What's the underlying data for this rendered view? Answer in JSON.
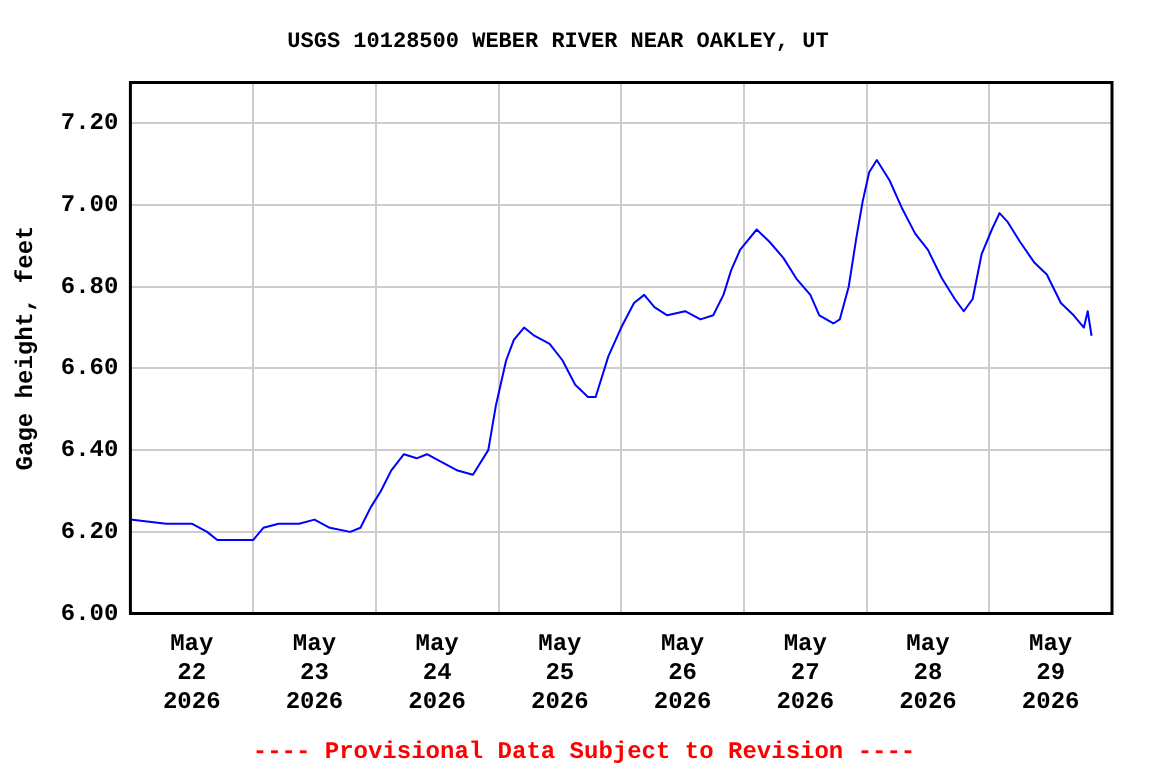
{
  "chart_data": {
    "type": "line",
    "title": "USGS 10128500 WEBER RIVER NEAR OAKLEY, UT",
    "ylabel": "Gage height, feet",
    "annotations": [
      "---- Provisional Data Subject to Revision ----"
    ],
    "xlim": [
      "2026-05-22",
      "2026-05-30"
    ],
    "xticks": [
      {
        "value": "2026-05-22T12:00",
        "label": "May 22 2026"
      },
      {
        "value": "2026-05-23",
        "label": null
      },
      {
        "value": "2026-05-23T12:00",
        "label": "May 23 2026"
      },
      {
        "value": "2026-05-24",
        "label": null
      },
      {
        "value": "2026-05-24T12:00",
        "label": "May 24 2026"
      },
      {
        "value": "2026-05-25",
        "label": null
      },
      {
        "value": "2026-05-25T12:00",
        "label": "May 25 2026"
      },
      {
        "value": "2026-05-26",
        "label": null
      },
      {
        "value": "2026-05-26T12:00",
        "label": "May 26 2026"
      },
      {
        "value": "2026-05-27",
        "label": null
      },
      {
        "value": "2026-05-27T12:00",
        "label": "May 27 2026"
      },
      {
        "value": "2026-05-28",
        "label": null
      },
      {
        "value": "2026-05-28T12:00",
        "label": "May 28 2026"
      },
      {
        "value": "2026-05-29",
        "label": null
      },
      {
        "value": "2026-05-29T12:00",
        "label": "May 29 2026"
      }
    ],
    "ylim": [
      6.0,
      7.3
    ],
    "yticks": [
      {
        "value": 6.0,
        "label": "6.00"
      },
      {
        "value": 6.2,
        "label": "6.20"
      },
      {
        "value": 6.4,
        "label": "6.40"
      },
      {
        "value": 6.6,
        "label": "6.60"
      },
      {
        "value": 6.8,
        "label": "6.80"
      },
      {
        "value": 7.0,
        "label": "7.00"
      },
      {
        "value": 7.2,
        "label": "7.20"
      }
    ],
    "grid": true,
    "legend": false,
    "marker": "none",
    "line_style": "solid",
    "x": [
      "2026-05-22T00:00",
      "2026-05-22T07:00",
      "2026-05-22T12:00",
      "2026-05-22T15:00",
      "2026-05-22T17:00",
      "2026-05-22T21:00",
      "2026-05-23T00:00",
      "2026-05-23T02:00",
      "2026-05-23T05:00",
      "2026-05-23T09:00",
      "2026-05-23T12:00",
      "2026-05-23T15:00",
      "2026-05-23T19:00",
      "2026-05-23T21:00",
      "2026-05-23T23:00",
      "2026-05-24T01:00",
      "2026-05-24T03:00",
      "2026-05-24T05:30",
      "2026-05-24T08:00",
      "2026-05-24T10:00",
      "2026-05-24T13:00",
      "2026-05-24T16:00",
      "2026-05-24T19:00",
      "2026-05-24T20:00",
      "2026-05-24T22:00",
      "2026-05-24T23:30",
      "2026-05-25T01:30",
      "2026-05-25T03:00",
      "2026-05-25T05:00",
      "2026-05-25T07:00",
      "2026-05-25T10:00",
      "2026-05-25T12:30",
      "2026-05-25T15:00",
      "2026-05-25T17:30",
      "2026-05-25T19:00",
      "2026-05-25T21:30",
      "2026-05-26T00:00",
      "2026-05-26T02:30",
      "2026-05-26T04:30",
      "2026-05-26T06:30",
      "2026-05-26T09:00",
      "2026-05-26T12:30",
      "2026-05-26T15:30",
      "2026-05-26T18:00",
      "2026-05-26T20:00",
      "2026-05-26T21:30",
      "2026-05-26T23:15",
      "2026-05-27T02:30",
      "2026-05-27T05:00",
      "2026-05-27T07:45",
      "2026-05-27T10:15",
      "2026-05-27T13:00",
      "2026-05-27T14:45",
      "2026-05-27T17:30",
      "2026-05-27T18:45",
      "2026-05-27T20:30",
      "2026-05-27T22:00",
      "2026-05-27T23:15",
      "2026-05-28T00:30",
      "2026-05-28T02:00",
      "2026-05-28T04:30",
      "2026-05-28T07:00",
      "2026-05-28T09:30",
      "2026-05-28T12:00",
      "2026-05-28T14:45",
      "2026-05-28T17:15",
      "2026-05-28T19:00",
      "2026-05-28T20:45",
      "2026-05-28T22:30",
      "2026-05-29T00:30",
      "2026-05-29T02:00",
      "2026-05-29T03:30",
      "2026-05-29T06:00",
      "2026-05-29T08:45",
      "2026-05-29T11:15",
      "2026-05-29T14:00",
      "2026-05-29T16:30",
      "2026-05-29T18:30",
      "2026-05-29T19:15",
      "2026-05-29T20:00"
    ],
    "series": [
      {
        "color": "#0000ff",
        "values": [
          6.23,
          6.22,
          6.22,
          6.2,
          6.18,
          6.18,
          6.18,
          6.21,
          6.22,
          6.22,
          6.23,
          6.21,
          6.2,
          6.21,
          6.26,
          6.3,
          6.35,
          6.39,
          6.38,
          6.39,
          6.37,
          6.35,
          6.34,
          6.36,
          6.4,
          6.51,
          6.62,
          6.67,
          6.7,
          6.68,
          6.66,
          6.62,
          6.56,
          6.53,
          6.53,
          6.63,
          6.7,
          6.76,
          6.78,
          6.75,
          6.73,
          6.74,
          6.72,
          6.73,
          6.78,
          6.84,
          6.89,
          6.94,
          6.91,
          6.87,
          6.82,
          6.78,
          6.73,
          6.71,
          6.72,
          6.8,
          6.92,
          7.01,
          7.08,
          7.11,
          7.06,
          6.99,
          6.93,
          6.89,
          6.82,
          6.77,
          6.74,
          6.77,
          6.88,
          6.94,
          6.98,
          6.96,
          6.91,
          6.86,
          6.83,
          6.76,
          6.73,
          6.7,
          6.74,
          6.68
        ]
      }
    ]
  }
}
